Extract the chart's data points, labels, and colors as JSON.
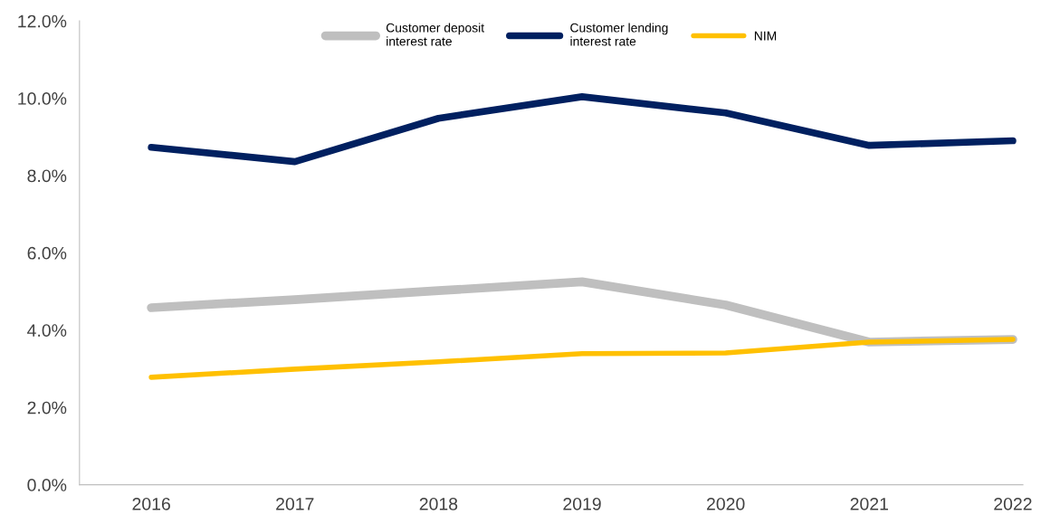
{
  "chart_data": {
    "type": "line",
    "categories": [
      "2016",
      "2017",
      "2018",
      "2019",
      "2020",
      "2021",
      "2022"
    ],
    "series": [
      {
        "name": "Customer deposit\ninterest rate",
        "color": "#bfbfbf",
        "values": [
          4.58,
          4.79,
          5.02,
          5.25,
          4.65,
          3.69,
          3.76
        ]
      },
      {
        "name": "Customer lending\ninterest rate",
        "color": "#002060",
        "values": [
          8.73,
          8.36,
          9.48,
          10.04,
          9.62,
          8.78,
          8.9
        ]
      },
      {
        "name": "NIM",
        "color": "#ffc000",
        "values": [
          2.78,
          2.99,
          3.18,
          3.39,
          3.41,
          3.69,
          3.76
        ]
      }
    ],
    "ylim": [
      0,
      12
    ],
    "yticks": [
      {
        "value": 0,
        "label": "0.0%"
      },
      {
        "value": 2,
        "label": "2.0%"
      },
      {
        "value": 4,
        "label": "4.0%"
      },
      {
        "value": 6,
        "label": "6.0%"
      },
      {
        "value": 8,
        "label": "8.0%"
      },
      {
        "value": 10,
        "label": "10.0%"
      },
      {
        "value": 12,
        "label": "12.0%"
      }
    ],
    "grid": false,
    "legend": "top",
    "marker": "none",
    "line_style": "solid"
  }
}
